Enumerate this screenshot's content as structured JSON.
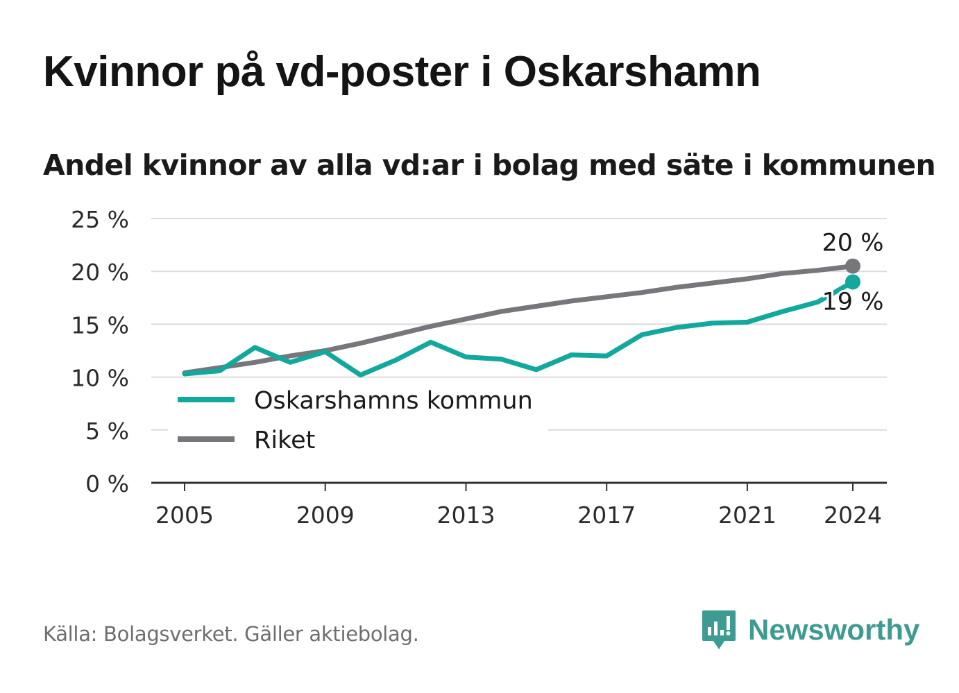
{
  "title": "Kvinnor på vd-poster i Oskarshamn",
  "subtitle": "Andel kvinnor av alla vd:ar i bolag med säte i kommunen",
  "source": "Källa: Bolagsverket. Gäller aktiebolag.",
  "brand": {
    "name": "Newsworthy",
    "icon": "newsworthy-logo-icon",
    "color": "#3e9b91"
  },
  "chart_data": {
    "type": "line",
    "ylim": [
      0,
      25
    ],
    "y_ticks": [
      0,
      5,
      10,
      15,
      20,
      25
    ],
    "y_tick_labels": [
      "0 %",
      "5 %",
      "10 %",
      "15 %",
      "20 %",
      "25 %"
    ],
    "x_ticks": [
      2005,
      2009,
      2013,
      2017,
      2021,
      2024
    ],
    "x_tick_labels": [
      "2005",
      "2009",
      "2013",
      "2017",
      "2021",
      "2024"
    ],
    "xlim": [
      2005,
      2024
    ],
    "grid": true,
    "legend_position": "bottom-left",
    "x": [
      2005,
      2006,
      2007,
      2008,
      2009,
      2010,
      2011,
      2012,
      2013,
      2014,
      2015,
      2016,
      2017,
      2018,
      2019,
      2020,
      2021,
      2022,
      2023,
      2024
    ],
    "series": [
      {
        "name": "Oskarshamns kommun",
        "color": "#13a89e",
        "values": [
          10.3,
          10.6,
          12.8,
          11.4,
          12.4,
          10.2,
          11.6,
          13.3,
          11.9,
          11.7,
          10.7,
          12.1,
          12.0,
          14.0,
          14.7,
          15.1,
          15.2,
          16.2,
          17.1,
          19.0
        ],
        "end_label": "19 %"
      },
      {
        "name": "Riket",
        "color": "#77767b",
        "values": [
          10.4,
          10.9,
          11.4,
          12.0,
          12.5,
          13.2,
          14.0,
          14.8,
          15.5,
          16.2,
          16.7,
          17.2,
          17.6,
          18.0,
          18.5,
          18.9,
          19.3,
          19.8,
          20.1,
          20.5
        ],
        "end_label": "20 %"
      }
    ]
  }
}
